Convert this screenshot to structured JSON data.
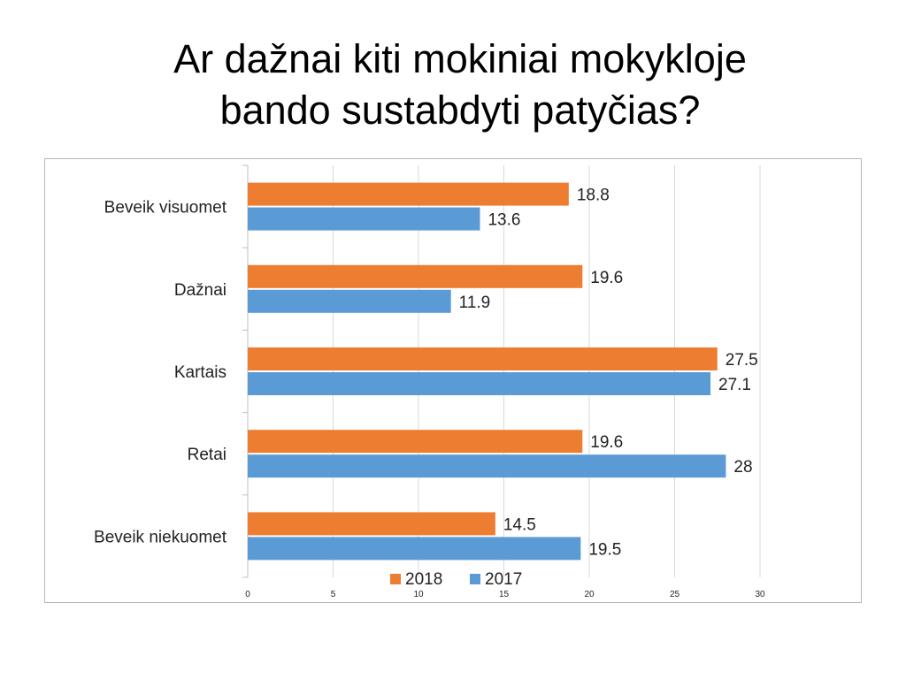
{
  "slide": {
    "title_line1": "Ar dažnai kiti mokiniai mokykloje",
    "title_line2": "bando sustabdyti patyčias?"
  },
  "chart_data": {
    "type": "bar",
    "orientation": "horizontal",
    "categories": [
      "Beveik visuomet",
      "Dažnai",
      "Kartais",
      "Retai",
      "Beveik niekuomet"
    ],
    "series": [
      {
        "name": "2018",
        "values": [
          18.8,
          19.6,
          27.5,
          19.6,
          14.5
        ],
        "color": "#ed7d31"
      },
      {
        "name": "2017",
        "values": [
          13.6,
          11.9,
          27.1,
          28,
          19.5
        ],
        "color": "#5b9bd5"
      }
    ],
    "value_labels": {
      "2018": [
        "18.8",
        "19.6",
        "27.5",
        "19.6",
        "14.5"
      ],
      "2017": [
        "13.6",
        "11.9",
        "27.1",
        "28",
        "19.5"
      ]
    },
    "xlim": [
      0,
      30
    ],
    "x_ticks": [
      "0",
      "5",
      "10",
      "15",
      "20",
      "25",
      "30"
    ],
    "grid": true,
    "legend_position": "bottom",
    "title": "",
    "xlabel": "",
    "ylabel": ""
  }
}
